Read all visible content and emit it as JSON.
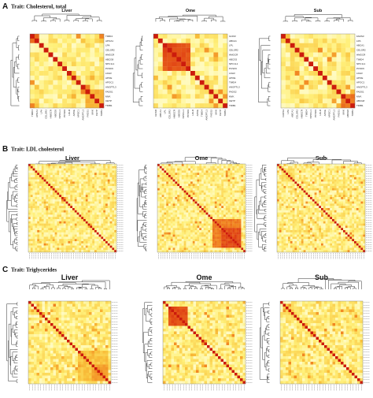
{
  "chart_data": {
    "type": "heatmap",
    "colormap": [
      "#ffffe0",
      "#fff07a",
      "#f9c23c",
      "#f28a23",
      "#e24a16",
      "#cc1b0c"
    ],
    "panels": [
      {
        "letter": "A",
        "trait": "Trait: Cholesterol, total",
        "heatmaps": [
          {
            "tissue": "Liver",
            "n": 16,
            "seed": 11,
            "labels": [
              "TIMD4",
              "APOA1",
              "LPA",
              "CELSR2",
              "HMGCR",
              "ABCG8",
              "NPC1L1",
              "PCSK9",
              "LDLR",
              "APOE",
              "APOC1",
              "ANGPTL3",
              "FADS1",
              "MVK",
              "CETP",
              "TRIB1"
            ],
            "blocks": [
              [
                0,
                2,
                0.8
              ],
              [
                12,
                16,
                0.55
              ]
            ]
          },
          {
            "tissue": "Ome",
            "n": 16,
            "seed": 23,
            "labels": [
              "GCKR",
              "ABCA1",
              "LPL",
              "CELSR2",
              "HMGCR",
              "ABCG5",
              "NPC1L1",
              "PCSK9",
              "LDLR",
              "APOE",
              "TIMD4",
              "ANGPTL3",
              "FADS2",
              "MVK",
              "CETP",
              "TRIB1"
            ],
            "blocks": [
              [
                2,
                8,
                0.85
              ],
              [
                10,
                13,
                0.35
              ]
            ]
          },
          {
            "tissue": "Sub",
            "n": 16,
            "seed": 37,
            "labels": [
              "FADS3",
              "LPA",
              "ABCA1",
              "CELSR2",
              "HMGCR",
              "TIMD4",
              "NPC1L1",
              "PCSK9",
              "LDLR",
              "APOE",
              "APOC1",
              "ANGPTL3",
              "FADS1",
              "MVK",
              "ABCG8",
              "TRIB1"
            ],
            "blocks": [
              [
                1,
                4,
                0.3
              ],
              [
                13,
                16,
                0.75
              ]
            ]
          }
        ]
      },
      {
        "letter": "B",
        "trait": "Trait: LDL cholesterol",
        "heatmaps": [
          {
            "tissue": "Liver",
            "n": 40,
            "seed": 41,
            "labels": [],
            "blocks": [
              [
                3,
                7,
                0.35
              ],
              [
                12,
                15,
                0.3
              ],
              [
                23,
                28,
                0.3
              ]
            ]
          },
          {
            "tissue": "Ome",
            "n": 40,
            "seed": 53,
            "labels": [],
            "blocks": [
              [
                3,
                8,
                0.3
              ],
              [
                25,
                38,
                0.7
              ],
              [
                29,
                38,
                0.85
              ]
            ]
          },
          {
            "tissue": "Sub",
            "n": 40,
            "seed": 67,
            "labels": [],
            "blocks": [
              [
                2,
                8,
                0.35
              ],
              [
                10,
                14,
                0.25
              ]
            ]
          }
        ]
      },
      {
        "letter": "C",
        "trait": "Trait: Triglycerides",
        "heatmaps": [
          {
            "tissue": "Liver",
            "n": 30,
            "seed": 71,
            "labels": [],
            "blocks": [
              [
                7,
                11,
                0.3
              ],
              [
                18,
                29,
                0.45
              ],
              [
                23,
                29,
                0.6
              ]
            ]
          },
          {
            "tissue": "Ome",
            "n": 30,
            "seed": 83,
            "labels": [],
            "blocks": [
              [
                2,
                9,
                0.85
              ],
              [
                11,
                13,
                0.3
              ]
            ]
          },
          {
            "tissue": "Sub",
            "n": 30,
            "seed": 97,
            "labels": [],
            "blocks": [
              [
                1,
                5,
                0.4
              ],
              [
                20,
                23,
                0.3
              ]
            ]
          }
        ]
      }
    ]
  }
}
